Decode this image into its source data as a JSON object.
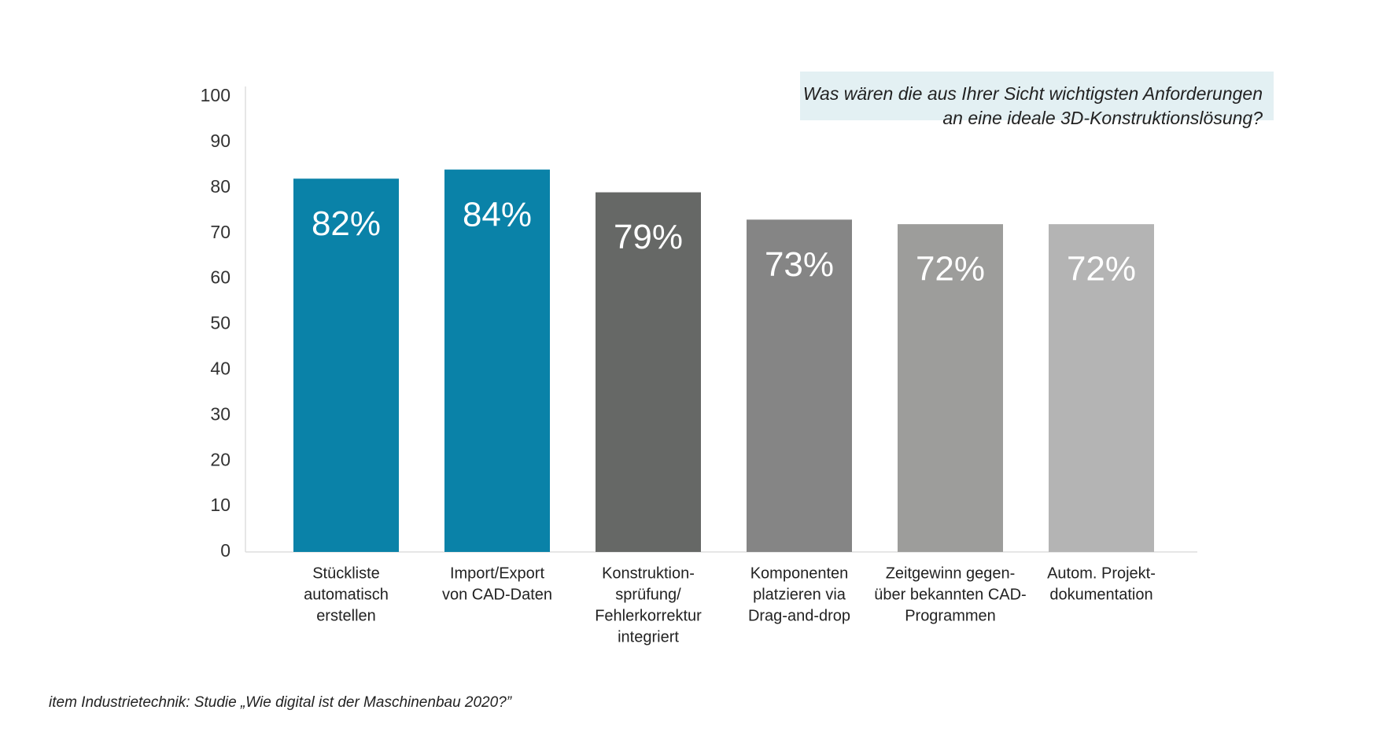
{
  "chart_data": {
    "type": "bar",
    "title": [
      "Was wären die aus Ihrer Sicht wichtigsten Anforderungen",
      "an eine ideale 3D-Konstruktionslösung?"
    ],
    "categories": [
      [
        "Stückliste",
        "automatisch",
        "erstellen"
      ],
      [
        "Import/Export",
        "von CAD-Daten"
      ],
      [
        "Konstruktion-",
        "sprüfung/",
        "Fehlerkorrektur",
        "integriert"
      ],
      [
        "Komponenten",
        "platzieren via",
        "Drag-and-drop"
      ],
      [
        "Zeitgewinn gegen-",
        "über bekannten CAD-",
        "Programmen"
      ],
      [
        "Autom. Projekt-",
        "dokumentation"
      ]
    ],
    "values": [
      82,
      84,
      79,
      73,
      72,
      72
    ],
    "value_labels": [
      "82%",
      "84%",
      "79%",
      "73%",
      "72%",
      "72%"
    ],
    "colors": [
      "#0a82a8",
      "#0a82a8",
      "#666866",
      "#858585",
      "#9d9d9b",
      "#b4b4b4"
    ],
    "ylim": [
      0,
      100
    ],
    "yticks": [
      0,
      10,
      20,
      30,
      40,
      50,
      60,
      70,
      80,
      90,
      100
    ],
    "grid": false,
    "source": "item Industrietechnik: Studie „Wie digital ist der Maschinenbau 2020?”"
  }
}
